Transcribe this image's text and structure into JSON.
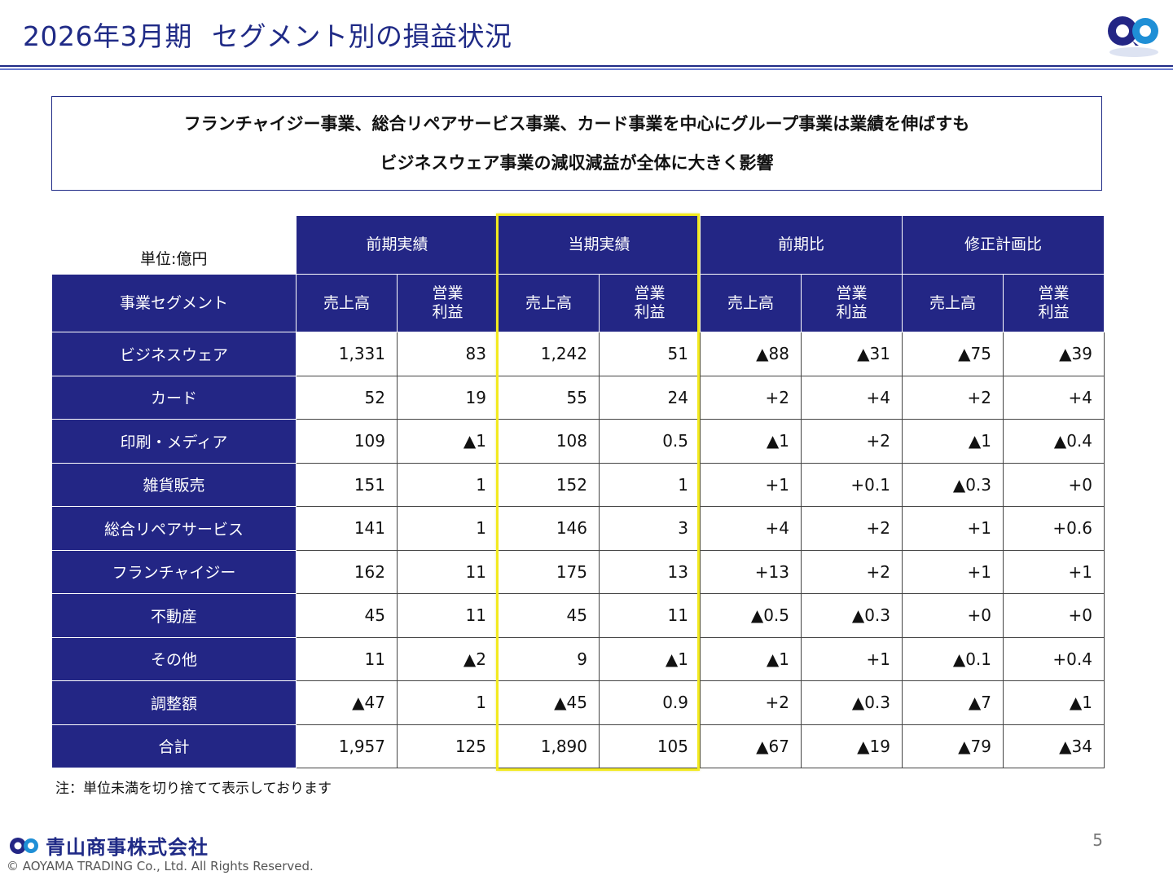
{
  "header": {
    "title_period": "2026年3月期",
    "title_main": "セグメント別の損益状況"
  },
  "summary": {
    "line1": "フランチャイジー事業、総合リペアサービス事業、カード事業を中心にグループ事業は業績を伸ばすも",
    "line2": "ビジネスウェア事業の減収減益が全体に大きく影響"
  },
  "table": {
    "unit_label": "単位:億円",
    "groups": [
      "前期実績",
      "当期実績",
      "前期比",
      "修正計画比"
    ],
    "segment_header": "事業セグメント",
    "sales_label": "売上高",
    "op_label_line1": "営業",
    "op_label_line2": "利益",
    "rows": [
      {
        "segment": "ビジネスウェア",
        "values": [
          "1,331",
          "83",
          "1,242",
          "51",
          "▲88",
          "▲31",
          "▲75",
          "▲39"
        ]
      },
      {
        "segment": "カード",
        "values": [
          "52",
          "19",
          "55",
          "24",
          "+2",
          "+4",
          "+2",
          "+4"
        ]
      },
      {
        "segment": "印刷・メディア",
        "values": [
          "109",
          "▲1",
          "108",
          "0.5",
          "▲1",
          "+2",
          "▲1",
          "▲0.4"
        ]
      },
      {
        "segment": "雑貨販売",
        "values": [
          "151",
          "1",
          "152",
          "1",
          "+1",
          "+0.1",
          "▲0.3",
          "+0"
        ]
      },
      {
        "segment": "総合リペアサービス",
        "values": [
          "141",
          "1",
          "146",
          "3",
          "+4",
          "+2",
          "+1",
          "+0.6"
        ]
      },
      {
        "segment": "フランチャイジー",
        "values": [
          "162",
          "11",
          "175",
          "13",
          "+13",
          "+2",
          "+1",
          "+1"
        ]
      },
      {
        "segment": "不動産",
        "values": [
          "45",
          "11",
          "45",
          "11",
          "▲0.5",
          "▲0.3",
          "+0",
          "+0"
        ]
      },
      {
        "segment": "その他",
        "values": [
          "11",
          "▲2",
          "9",
          "▲1",
          "▲1",
          "+1",
          "▲0.1",
          "+0.4"
        ]
      },
      {
        "segment": "調整額",
        "values": [
          "▲47",
          "1",
          "▲45",
          "0.9",
          "+2",
          "▲0.3",
          "▲7",
          "▲1"
        ]
      },
      {
        "segment": "合計",
        "values": [
          "1,957",
          "125",
          "1,890",
          "105",
          "▲67",
          "▲19",
          "▲79",
          "▲34"
        ]
      }
    ]
  },
  "note": "注：単位未満を切り捨てて表示しております",
  "footer": {
    "company": "青山商事株式会社",
    "copyright": "© AOYAMA TRADING Co., Ltd. All Rights Reserved.",
    "page_number": "5"
  },
  "colors": {
    "brand_navy": "#232685",
    "highlight": "#f3ea1f",
    "logo_blue": "#1f8fd6"
  },
  "icons": {
    "logo": "aoyama-logo-icon"
  }
}
